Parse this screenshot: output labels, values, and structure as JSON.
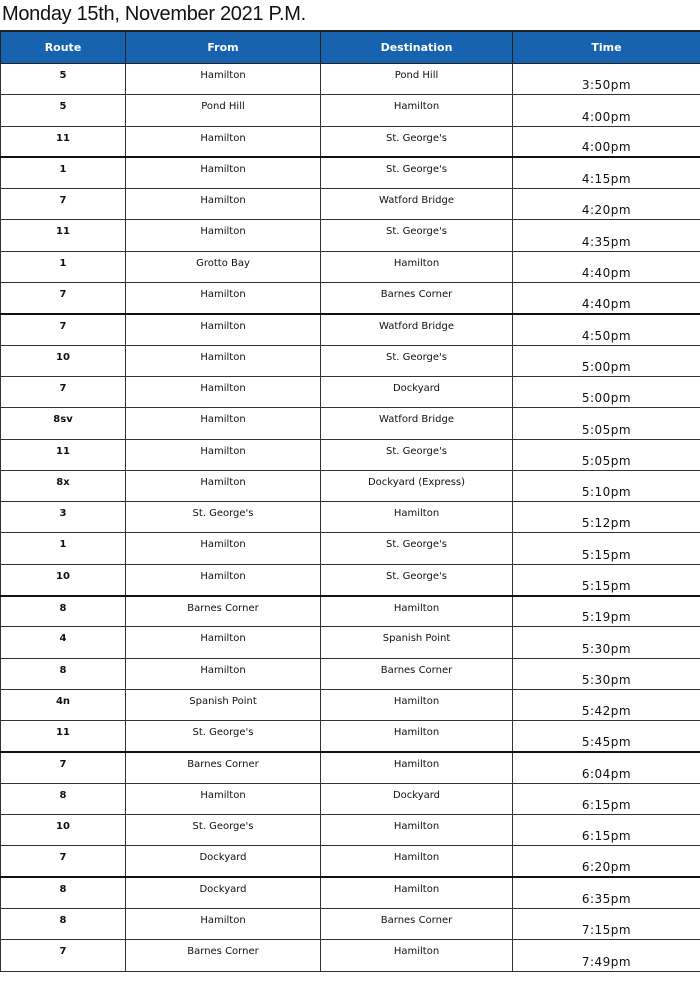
{
  "title": "Monday 15th, November 2021 P.M.",
  "header": {
    "route": "Route",
    "from": "From",
    "destination": "Destination",
    "time": "Time"
  },
  "colors": {
    "header_bg": "#1763b0",
    "header_text": "#ffffff"
  },
  "rows": [
    {
      "route": "5",
      "from": "Hamilton",
      "destination": "Pond Hill",
      "time": "3:50pm"
    },
    {
      "route": "5",
      "from": "Pond Hill",
      "destination": "Hamilton",
      "time": "4:00pm"
    },
    {
      "route": "11",
      "from": "Hamilton",
      "destination": "St. George's",
      "time": "4:00pm"
    },
    {
      "route": "1",
      "from": "Hamilton",
      "destination": "St. George's",
      "time": "4:15pm"
    },
    {
      "route": "7",
      "from": "Hamilton",
      "destination": "Watford Bridge",
      "time": "4:20pm"
    },
    {
      "route": "11",
      "from": "Hamilton",
      "destination": "St. George's",
      "time": "4:35pm"
    },
    {
      "route": "1",
      "from": "Grotto Bay",
      "destination": "Hamilton",
      "time": "4:40pm"
    },
    {
      "route": "7",
      "from": "Hamilton",
      "destination": "Barnes Corner",
      "time": "4:40pm"
    },
    {
      "route": "7",
      "from": "Hamilton",
      "destination": "Watford Bridge",
      "time": "4:50pm"
    },
    {
      "route": "10",
      "from": "Hamilton",
      "destination": "St. George's",
      "time": "5:00pm"
    },
    {
      "route": "7",
      "from": "Hamilton",
      "destination": "Dockyard",
      "time": "5:00pm"
    },
    {
      "route": "8sv",
      "from": "Hamilton",
      "destination": "Watford Bridge",
      "time": "5:05pm"
    },
    {
      "route": "11",
      "from": "Hamilton",
      "destination": "St. George's",
      "time": "5:05pm"
    },
    {
      "route": "8x",
      "from": "Hamilton",
      "destination": "Dockyard (Express)",
      "time": "5:10pm"
    },
    {
      "route": "3",
      "from": "St. George's",
      "destination": "Hamilton",
      "time": "5:12pm"
    },
    {
      "route": "1",
      "from": "Hamilton",
      "destination": "St. George's",
      "time": "5:15pm"
    },
    {
      "route": "10",
      "from": "Hamilton",
      "destination": "St. George's",
      "time": "5:15pm"
    },
    {
      "route": "8",
      "from": "Barnes Corner",
      "destination": "Hamilton",
      "time": "5:19pm"
    },
    {
      "route": "4",
      "from": "Hamilton",
      "destination": "Spanish Point",
      "time": "5:30pm"
    },
    {
      "route": "8",
      "from": "Hamilton",
      "destination": "Barnes Corner",
      "time": "5:30pm"
    },
    {
      "route": "4n",
      "from": "Spanish Point",
      "destination": "Hamilton",
      "time": "5:42pm"
    },
    {
      "route": "11",
      "from": "St. George's",
      "destination": "Hamilton",
      "time": "5:45pm"
    },
    {
      "route": "7",
      "from": "Barnes Corner",
      "destination": "Hamilton",
      "time": "6:04pm"
    },
    {
      "route": "8",
      "from": "Hamilton",
      "destination": "Dockyard",
      "time": "6:15pm"
    },
    {
      "route": "10",
      "from": "St. George's",
      "destination": "Hamilton",
      "time": "6:15pm"
    },
    {
      "route": "7",
      "from": "Dockyard",
      "destination": "Hamilton",
      "time": "6:20pm"
    },
    {
      "route": "8",
      "from": "Dockyard",
      "destination": "Hamilton",
      "time": "6:35pm"
    },
    {
      "route": "8",
      "from": "Hamilton",
      "destination": "Barnes Corner",
      "time": "7:15pm"
    },
    {
      "route": "7",
      "from": "Barnes Corner",
      "destination": "Hamilton",
      "time": "7:49pm"
    }
  ]
}
